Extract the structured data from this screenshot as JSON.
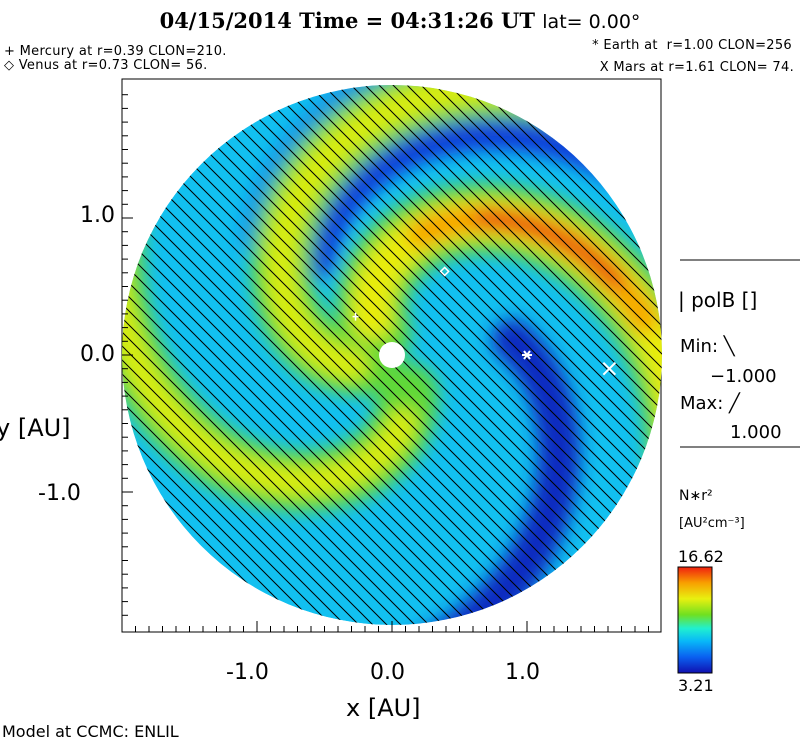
{
  "header": {
    "title": "04/15/2014 Time = 04:31:26 UT",
    "lat": "lat= 0.00°"
  },
  "planets_text": {
    "mercury": "+ Mercury at r=0.39 CLON=210.",
    "venus": "◇ Venus at r=0.73 CLON= 56.",
    "earth": "* Earth at  r=1.00 CLON=256",
    "mars": "X Mars at r=1.61 CLON= 74."
  },
  "legend": {
    "field": "| polB []",
    "min_label": "Min: ╲",
    "min_value": "−1.000",
    "max_label": "Max: ╱",
    "max_value": "1.000",
    "var": "N∗r²",
    "units": "[AU²cm⁻³]",
    "cmax": "16.62",
    "cmin": "3.21"
  },
  "footer": "Model at CCMC: ENLIL",
  "chart_data": {
    "type": "heatmap",
    "title": "04/15/2014 Time = 04:31:26 UT lat= 0.00°",
    "xlabel": "x [AU]",
    "ylabel": "y [AU]",
    "xlim": [
      -2.0,
      2.0
    ],
    "ylim": [
      -2.0,
      2.05
    ],
    "xticks": [
      "-1.0",
      "0.0",
      "1.0"
    ],
    "yticks": [
      "1.0",
      "0.0",
      "-1.0"
    ],
    "variable": "N*r^2",
    "units": "AU^2 cm^-3",
    "color_range": [
      3.21,
      16.62
    ],
    "overlay": "polB hatching (\\ = -1, / = +1)",
    "planets": [
      {
        "name": "Mercury",
        "r": 0.39,
        "clon": 210,
        "x": -0.27,
        "y": 0.28,
        "marker": "+"
      },
      {
        "name": "Venus",
        "r": 0.73,
        "clon": 56,
        "x": 0.39,
        "y": 0.61,
        "marker": "diamond"
      },
      {
        "name": "Earth",
        "r": 1.0,
        "clon": 256,
        "x": 1.0,
        "y": 0.0,
        "marker": "*"
      },
      {
        "name": "Mars",
        "r": 1.61,
        "clon": 74,
        "x": 1.61,
        "y": -0.1,
        "marker": "X"
      }
    ],
    "colors": {
      "low": "#1a1aa0",
      "mid": "#22e8d0",
      "high": "#e82a10"
    }
  }
}
